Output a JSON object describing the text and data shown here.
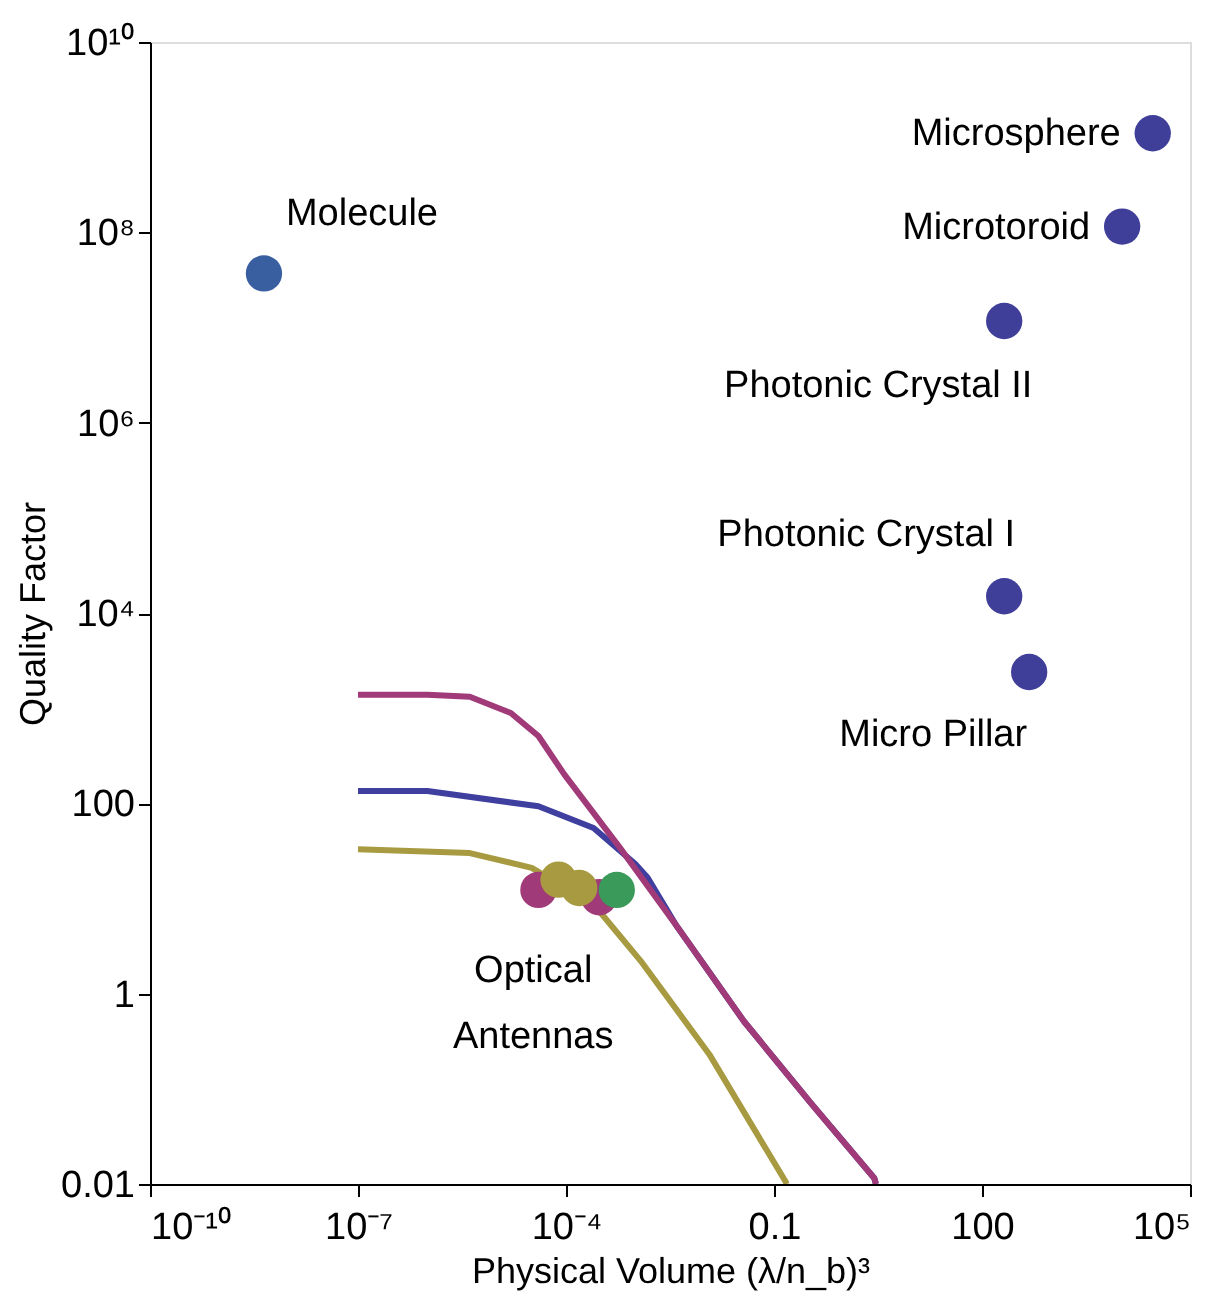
{
  "chart_data": {
    "type": "scatter",
    "xlabel": "Physical Volume (λ/n_b)³",
    "ylabel": "Quality Factor",
    "log": "xy",
    "grid": false,
    "xlim": [
      1e-10,
      100000
    ],
    "ylim": [
      0.01,
      10000000000
    ],
    "xticks": [
      {
        "value": 1e-10,
        "label": "10⁻¹⁰"
      },
      {
        "value": 1e-07,
        "label": "10⁻⁷"
      },
      {
        "value": 0.0001,
        "label": "10⁻⁴"
      },
      0.1,
      100,
      {
        "value": 100000,
        "label": "10⁵"
      }
    ],
    "yticks": [
      0.01,
      1,
      100,
      {
        "value": 10000,
        "label": "10⁴"
      },
      {
        "value": 1000000,
        "label": "10⁶"
      },
      {
        "value": 100000000,
        "label": "10⁸"
      },
      {
        "value": 10000000000,
        "label": "10¹⁰"
      }
    ],
    "series": [
      {
        "type": "line",
        "marker": "none",
        "color": "#3f3fa0",
        "x": [
          1e-07,
          1e-06,
          4e-05,
          0.00025,
          0.001,
          0.0015,
          0.0039,
          0.037,
          0.35,
          2.8,
          2.95
        ],
        "values": [
          135,
          135,
          93,
          55,
          23,
          16.6,
          5.2,
          0.51,
          0.069,
          0.0115,
          0.01
        ]
      },
      {
        "type": "line",
        "marker": "none",
        "color": "#a03a78",
        "x": [
          1e-07,
          1e-06,
          4.1e-06,
          1.6e-05,
          4e-05,
          9.5e-05,
          0.00062,
          0.0039,
          0.037,
          0.35,
          2.8,
          2.95
        ],
        "values": [
          1380,
          1380,
          1320,
          890,
          510,
          200,
          33,
          5.2,
          0.51,
          0.069,
          0.0115,
          0.01
        ]
      },
      {
        "type": "line",
        "marker": "none",
        "color": "#a89a40",
        "x": [
          1e-07,
          4.1e-06,
          3.2e-05,
          0.00025,
          0.0012,
          0.0117,
          0.148,
          0.151
        ],
        "values": [
          33,
          30,
          21,
          8.7,
          2.2,
          0.23,
          0.0105,
          0.01
        ]
      },
      {
        "marker": "circle",
        "x": [
          4.4e-09,
          29000,
          10500,
          209,
          209,
          479,
          4e-05,
          7.8e-05,
          0.0003,
          0.000155,
          0.00054
        ],
        "values": [
          37000000,
          1100000000,
          115000000,
          11700000,
          15000,
          2400,
          12.3,
          15.8,
          10.3,
          12.9,
          12.3
        ],
        "colors": [
          "#3a5fa0",
          "#3f3f9a",
          "#3f3f9a",
          "#3f3f9a",
          "#3f3f9a",
          "#3f3f9a",
          "#a03a78",
          "#a89a40",
          "#a03a78",
          "#a89a40",
          "#3a9a5a"
        ]
      }
    ],
    "annotations": [
      {
        "text": "Molecule",
        "x": 4.4e-09,
        "y": 37000000
      },
      {
        "text": "Microsphere",
        "x": 29000,
        "y": 1100000000
      },
      {
        "text": "Microtoroid",
        "x": 10500,
        "y": 115000000
      },
      {
        "text": "Photonic Crystal II",
        "x": 209,
        "y": 11700000
      },
      {
        "text": "Photonic Crystal I",
        "x": 209,
        "y": 15000
      },
      {
        "text": "Micro Pillar",
        "x": 479,
        "y": 2400
      },
      {
        "text": "Optical Antennas",
        "x": 0.000155,
        "y": 12.9
      }
    ]
  }
}
